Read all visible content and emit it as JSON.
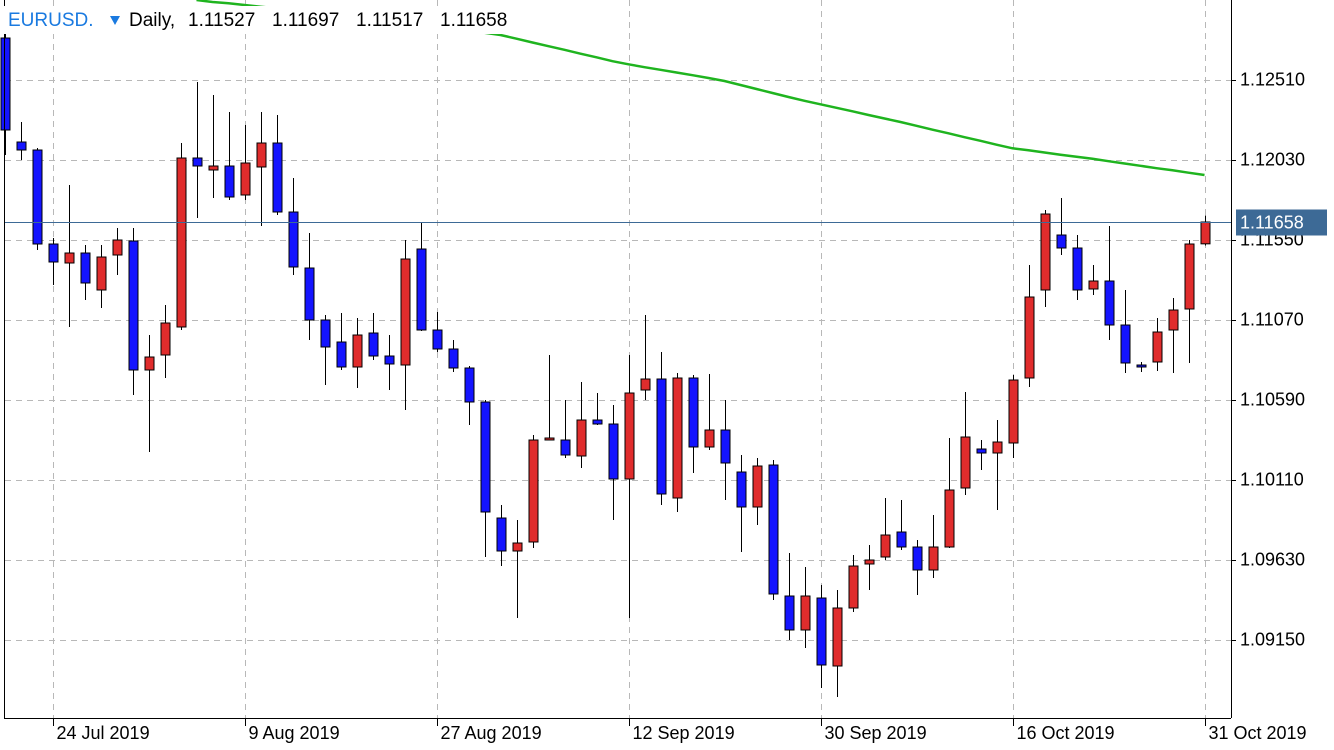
{
  "chart_data": {
    "type": "candlestick",
    "title": "EURUSD.",
    "timeframe": "Daily,",
    "categories": [
      null,
      null,
      null,
      "24 Jul 2019",
      null,
      null,
      null,
      null,
      null,
      null,
      null,
      null,
      null,
      null,
      null,
      "9 Aug 2019",
      null,
      null,
      null,
      null,
      null,
      null,
      null,
      null,
      null,
      null,
      null,
      "27 Aug 2019",
      null,
      null,
      null,
      null,
      null,
      null,
      null,
      null,
      null,
      null,
      null,
      "12 Sep 2019",
      null,
      null,
      null,
      null,
      null,
      null,
      null,
      null,
      null,
      null,
      null,
      "30 Sep 2019",
      null,
      null,
      null,
      null,
      null,
      null,
      null,
      null,
      null,
      null,
      null,
      "16 Oct 2019",
      null,
      null,
      null,
      null,
      null,
      null,
      null,
      null,
      null,
      null,
      null,
      "31 Oct 2019"
    ],
    "open": [
      1.12762,
      1.12138,
      1.1209,
      1.11526,
      1.11412,
      1.11472,
      1.1125,
      1.1146,
      1.11544,
      1.1077,
      1.1086,
      1.11028,
      1.12042,
      1.1197,
      1.11994,
      1.1182,
      1.11988,
      1.12132,
      1.11718,
      1.11382,
      1.1107,
      1.10938,
      1.10788,
      1.10992,
      1.10854,
      1.108,
      1.11496,
      1.1101,
      1.10896,
      1.10782,
      1.10578,
      1.09882,
      1.09684,
      1.09738,
      1.1035,
      1.1035,
      1.10254,
      1.1047,
      1.10446,
      1.10116,
      1.1065,
      1.10716,
      1.10002,
      1.10722,
      1.10308,
      1.1041,
      1.10158,
      1.09948,
      1.102,
      1.09414,
      1.0921,
      1.09402,
      1.08994,
      1.09342,
      1.09606,
      1.09648,
      1.09798,
      1.09708,
      1.0957,
      1.09708,
      1.10062,
      1.10296,
      1.10272,
      1.10332,
      1.10722,
      1.1125,
      1.1158,
      1.11502,
      1.11256,
      1.11304,
      1.1104,
      1.108,
      1.10818,
      1.1101,
      1.11136,
      1.11527
    ],
    "high": [
      1.1284,
      1.12258,
      1.12102,
      1.11562,
      1.1188,
      1.1152,
      1.1152,
      1.11622,
      1.11622,
      1.1098,
      1.1116,
      1.12132,
      1.12498,
      1.1242,
      1.12318,
      1.1224,
      1.12318,
      1.123,
      1.11922,
      1.11592,
      1.111,
      1.11112,
      1.11082,
      1.11112,
      1.1098,
      1.1155,
      1.11652,
      1.11118,
      1.1095,
      1.10794,
      1.1059,
      1.0996,
      1.0987,
      1.1038,
      1.1086,
      1.1059,
      1.10698,
      1.10632,
      1.1056,
      1.1086,
      1.111,
      1.10878,
      1.10752,
      1.1074,
      1.10746,
      1.1059,
      1.1026,
      1.10242,
      1.1023,
      1.09672,
      1.09588,
      1.0948,
      1.0945,
      1.0966,
      1.0972,
      1.10002,
      1.0999,
      1.0975,
      1.099,
      1.10362,
      1.10638,
      1.1035,
      1.1047,
      1.1074,
      1.114,
      1.1173,
      1.11802,
      1.1158,
      1.114,
      1.11634,
      1.1125,
      1.10818,
      1.11082,
      1.11202,
      1.1155,
      1.11697
    ],
    "low": [
      1.1206,
      1.1203,
      1.1149,
      1.1128,
      1.11028,
      1.1119,
      1.11142,
      1.1134,
      1.1062,
      1.10278,
      1.10722,
      1.1101,
      1.11682,
      1.11802,
      1.1179,
      1.1179,
      1.11634,
      1.117,
      1.1134,
      1.1095,
      1.1068,
      1.1077,
      1.10662,
      1.1083,
      1.1065,
      1.1053,
      1.11004,
      1.10878,
      1.10758,
      1.1044,
      1.09648,
      1.09594,
      1.09282,
      1.09702,
      1.1035,
      1.10242,
      1.10182,
      1.1044,
      1.0987,
      1.09282,
      1.1059,
      1.0996,
      1.09918,
      1.10152,
      1.1029,
      1.0999,
      1.09678,
      1.0984,
      1.0939,
      1.0915,
      1.09102,
      1.08862,
      1.08808,
      1.09318,
      1.0945,
      1.0963,
      1.0969,
      1.0942,
      1.09522,
      1.09702,
      1.1002,
      1.1017,
      1.0993,
      1.10242,
      1.10668,
      1.11148,
      1.1146,
      1.1119,
      1.1122,
      1.1095,
      1.10752,
      1.10758,
      1.10764,
      1.10752,
      1.10812,
      1.11517
    ],
    "close": [
      1.1221,
      1.1209,
      1.11526,
      1.11418,
      1.11472,
      1.11292,
      1.11448,
      1.1155,
      1.1077,
      1.10848,
      1.11052,
      1.12042,
      1.11994,
      1.11994,
      1.11808,
      1.12012,
      1.12132,
      1.11718,
      1.11388,
      1.1107,
      1.10908,
      1.10788,
      1.1098,
      1.10854,
      1.10806,
      1.11436,
      1.1101,
      1.10896,
      1.10782,
      1.10578,
      1.09918,
      1.09684,
      1.09732,
      1.1035,
      1.10362,
      1.1026,
      1.1047,
      1.10446,
      1.10116,
      1.10632,
      1.10716,
      1.10026,
      1.10722,
      1.10308,
      1.1041,
      1.10212,
      1.09948,
      1.10194,
      1.09426,
      1.0921,
      1.09414,
      1.09,
      1.09342,
      1.09594,
      1.0963,
      1.0978,
      1.09708,
      1.0957,
      1.09708,
      1.1005,
      1.10368,
      1.10272,
      1.10338,
      1.1071,
      1.11208,
      1.11706,
      1.11502,
      1.1125,
      1.11304,
      1.1104,
      1.10812,
      1.10788,
      1.10998,
      1.1113,
      1.11526,
      1.11658
    ],
    "up_color": "#e02c2c",
    "down_color": "#1414ff",
    "ma": {
      "color": "#1fb41f",
      "values": [
        null,
        null,
        null,
        null,
        null,
        null,
        null,
        null,
        null,
        null,
        null,
        null,
        1.1299,
        1.12978,
        1.1297,
        1.1296,
        1.1295,
        1.1294,
        1.1293,
        1.1292,
        1.1291,
        1.12901,
        1.1289,
        1.12879,
        1.12866,
        1.12854,
        1.12842,
        1.12829,
        1.12817,
        1.12805,
        1.12793,
        1.1278,
        1.12758,
        1.12735,
        1.12713,
        1.12691,
        1.12668,
        1.12646,
        1.12623,
        1.12604,
        1.12587,
        1.12571,
        1.12555,
        1.12539,
        1.12522,
        1.12504,
        1.1248,
        1.12456,
        1.12432,
        1.12408,
        1.12385,
        1.12364,
        1.12343,
        1.12322,
        1.123,
        1.12279,
        1.12258,
        1.12235,
        1.12212,
        1.1219,
        1.12167,
        1.12145,
        1.12122,
        1.121,
        1.12088,
        1.12075,
        1.12062,
        1.12049,
        1.12037,
        1.12023,
        1.12009,
        1.11995,
        1.11981,
        1.11968,
        1.11954,
        1.1194
      ]
    },
    "ylim": [
      1.08682,
      1.1299
    ],
    "yticks": [
      {
        "value": 1.1251,
        "label": "1.12510"
      },
      {
        "value": 1.1203,
        "label": "1.12030"
      },
      {
        "value": 1.1155,
        "label": "1.11550"
      },
      {
        "value": 1.1107,
        "label": "1.11070"
      },
      {
        "value": 1.1059,
        "label": "1.10590"
      },
      {
        "value": 1.1011,
        "label": "1.10110"
      },
      {
        "value": 1.0963,
        "label": "1.09630"
      },
      {
        "value": 1.0915,
        "label": "1.09150"
      }
    ],
    "grid": true,
    "current_price_color": "#3d6a96"
  }
}
